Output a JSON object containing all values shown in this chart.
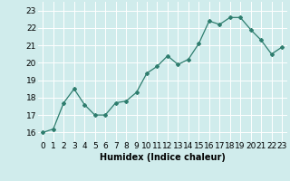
{
  "x": [
    0,
    1,
    2,
    3,
    4,
    5,
    6,
    7,
    8,
    9,
    10,
    11,
    12,
    13,
    14,
    15,
    16,
    17,
    18,
    19,
    20,
    21,
    22,
    23
  ],
  "y": [
    16.0,
    16.2,
    17.7,
    18.5,
    17.6,
    17.0,
    17.0,
    17.7,
    17.8,
    18.3,
    19.4,
    19.8,
    20.4,
    19.9,
    20.2,
    21.1,
    22.4,
    22.2,
    22.6,
    22.6,
    21.9,
    21.3,
    20.5,
    20.9
  ],
  "line_color": "#2e7d6e",
  "marker": "D",
  "marker_size": 2,
  "bg_color": "#d0ecec",
  "grid_color": "#b8d8d8",
  "xlabel": "Humidex (Indice chaleur)",
  "xlim": [
    -0.5,
    23.5
  ],
  "ylim": [
    15.5,
    23.5
  ],
  "yticks": [
    16,
    17,
    18,
    19,
    20,
    21,
    22,
    23
  ],
  "xticks": [
    0,
    1,
    2,
    3,
    4,
    5,
    6,
    7,
    8,
    9,
    10,
    11,
    12,
    13,
    14,
    15,
    16,
    17,
    18,
    19,
    20,
    21,
    22,
    23
  ],
  "xlabel_fontsize": 7,
  "tick_fontsize": 6.5
}
